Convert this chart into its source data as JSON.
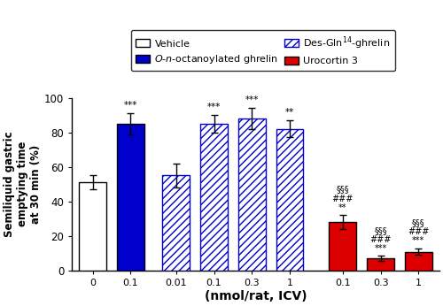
{
  "bars": [
    {
      "label": "0",
      "group": "vehicle",
      "value": 51,
      "error": 4,
      "color": "white",
      "hatch": "",
      "edgecolor": "#000000",
      "hatch_color": "#000000"
    },
    {
      "label": "0.1",
      "group": "ghrelin",
      "value": 85,
      "error": 6,
      "color": "#0000CC",
      "hatch": "",
      "edgecolor": "#000000",
      "hatch_color": "#000000"
    },
    {
      "label": "0.01",
      "group": "des",
      "value": 55,
      "error": 7,
      "color": "white",
      "hatch": "////",
      "edgecolor": "#0000CC",
      "hatch_color": "#0000CC"
    },
    {
      "label": "0.1",
      "group": "des",
      "value": 85,
      "error": 5,
      "color": "white",
      "hatch": "////",
      "edgecolor": "#0000CC",
      "hatch_color": "#0000CC"
    },
    {
      "label": "0.3",
      "group": "des",
      "value": 88,
      "error": 6,
      "color": "white",
      "hatch": "////",
      "edgecolor": "#0000CC",
      "hatch_color": "#0000CC"
    },
    {
      "label": "1",
      "group": "des",
      "value": 82,
      "error": 5,
      "color": "white",
      "hatch": "////",
      "edgecolor": "#0000CC",
      "hatch_color": "#0000CC"
    },
    {
      "label": "0.1",
      "group": "urocortin",
      "value": 28,
      "error": 4,
      "color": "#DD0000",
      "hatch": "",
      "edgecolor": "#000000",
      "hatch_color": "#000000"
    },
    {
      "label": "0.3",
      "group": "urocortin",
      "value": 7,
      "error": 1.5,
      "color": "#DD0000",
      "hatch": "",
      "edgecolor": "#000000",
      "hatch_color": "#000000"
    },
    {
      "label": "1",
      "group": "urocortin",
      "value": 11,
      "error": 2,
      "color": "#DD0000",
      "hatch": "",
      "edgecolor": "#000000",
      "hatch_color": "#000000"
    }
  ],
  "x_positions": [
    0,
    1,
    2.2,
    3.2,
    4.2,
    5.2,
    6.6,
    7.6,
    8.6
  ],
  "bar_width": 0.72,
  "annotations": [
    {
      "bar_idx": 1,
      "text": "***",
      "y": 93,
      "fontsize": 7.5
    },
    {
      "bar_idx": 3,
      "text": "***",
      "y": 92,
      "fontsize": 7.5
    },
    {
      "bar_idx": 4,
      "text": "***",
      "y": 96,
      "fontsize": 7.5
    },
    {
      "bar_idx": 5,
      "text": "**",
      "y": 89,
      "fontsize": 7.5
    },
    {
      "bar_idx": 6,
      "text": "§§§\n###\n**",
      "y": 34,
      "fontsize": 7
    },
    {
      "bar_idx": 7,
      "text": "§§§\n###\n***",
      "y": 10,
      "fontsize": 7
    },
    {
      "bar_idx": 8,
      "text": "§§§\n###\n***",
      "y": 15,
      "fontsize": 7
    }
  ],
  "xtick_labels": [
    "0",
    "0.1",
    "0.01",
    "0.1",
    "0.3",
    "1",
    "0.1",
    "0.3",
    "1"
  ],
  "ylabel": "Semiliquid gastric\nemptying time\nat 30 min (%)",
  "xlabel": "(nmol/rat, ICV)",
  "ylim": [
    0,
    100
  ],
  "yticks": [
    0,
    20,
    40,
    60,
    80,
    100
  ],
  "xlim": [
    -0.55,
    9.15
  ],
  "legend_items": [
    {
      "label": "Vehicle",
      "color": "white",
      "hatch": "",
      "edgecolor": "#000000"
    },
    {
      "label": "O-n-octanoylated ghrelin",
      "color": "#0000CC",
      "hatch": "",
      "edgecolor": "#000000"
    },
    {
      "label": "Des-Gln14-ghrelin",
      "color": "white",
      "hatch": "////",
      "edgecolor": "#0000CC"
    },
    {
      "label": "Urocortin 3",
      "color": "#DD0000",
      "hatch": "",
      "edgecolor": "#000000"
    }
  ]
}
